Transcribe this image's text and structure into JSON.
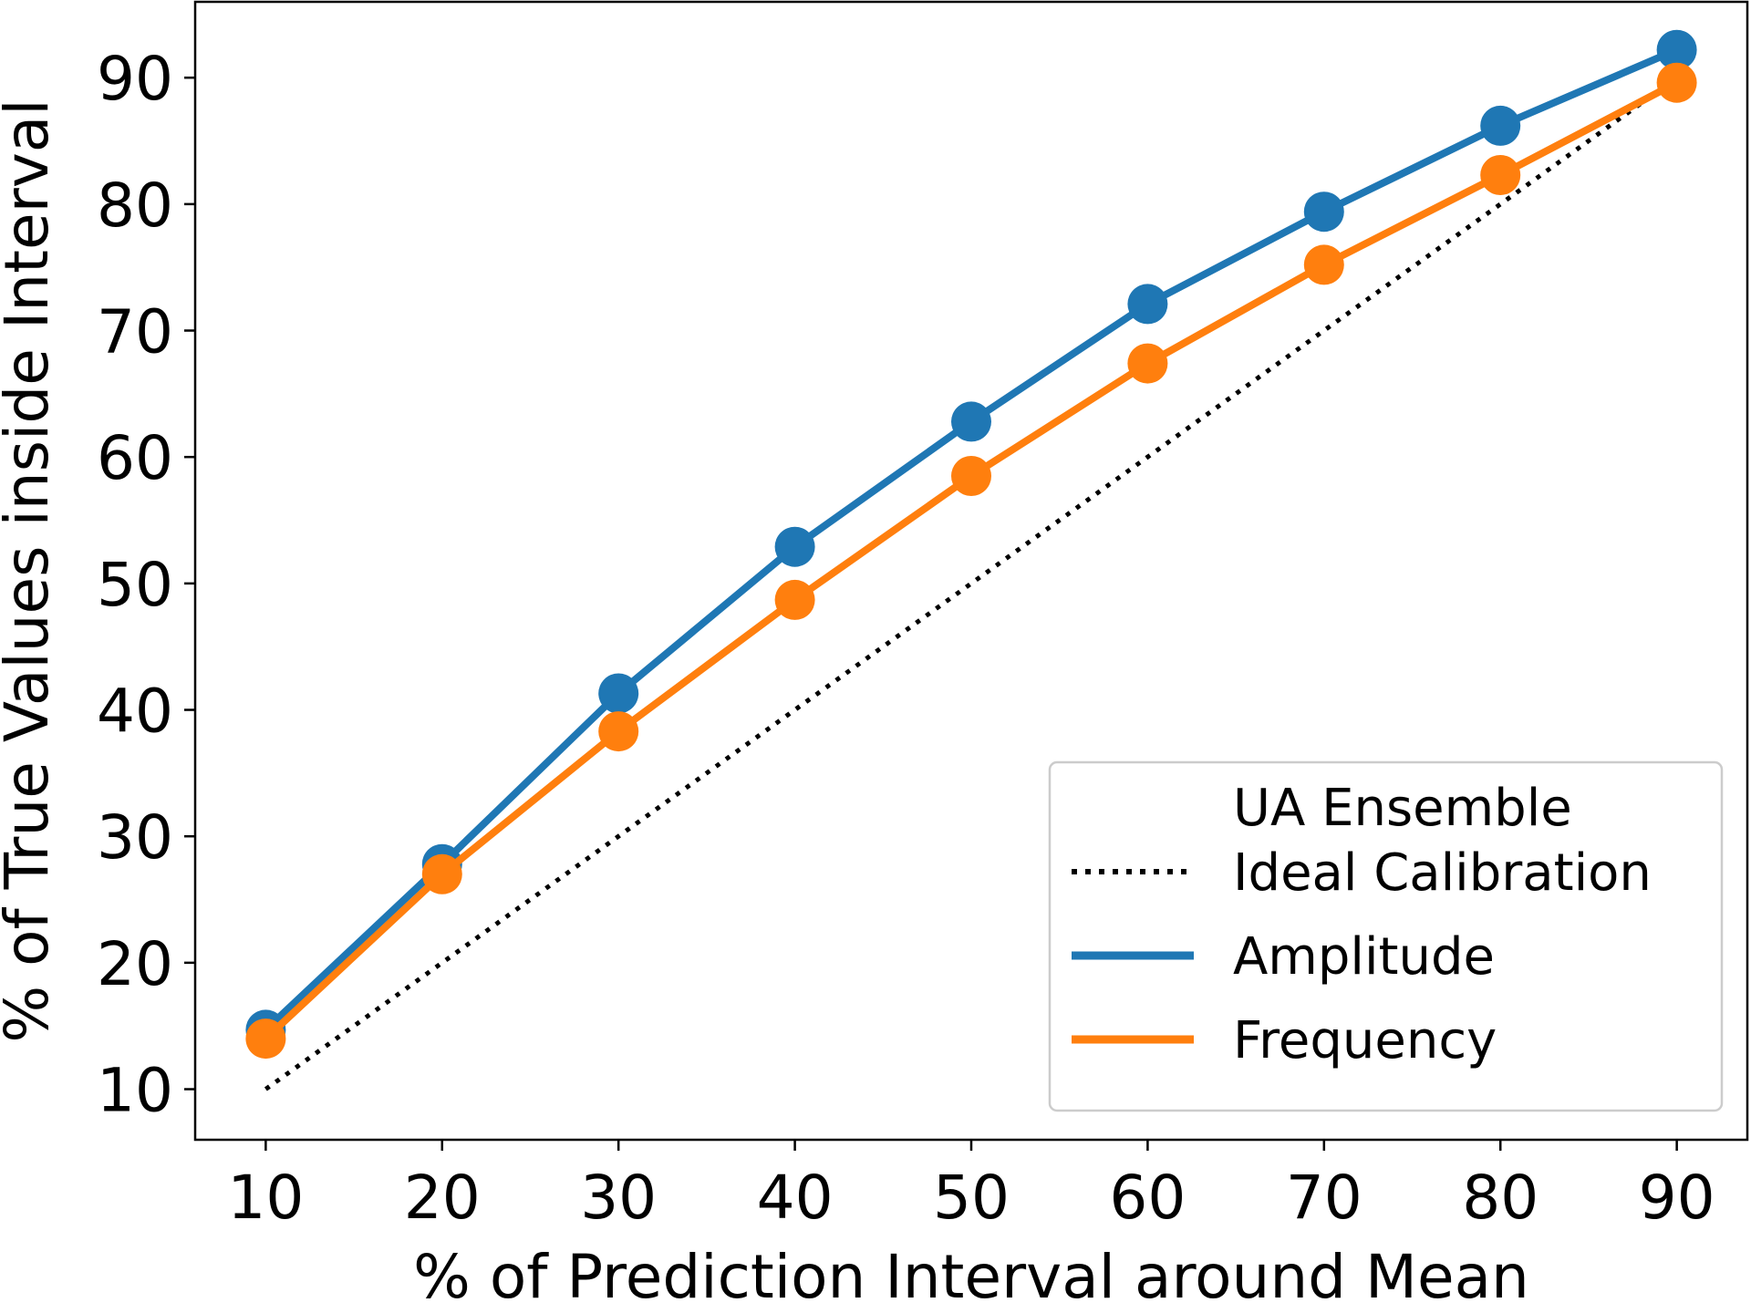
{
  "chart_data": {
    "type": "line",
    "title": "",
    "xlabel": "% of Prediction Interval around Mean",
    "ylabel": "% of True Values inside Interval",
    "x": [
      10,
      20,
      30,
      40,
      50,
      60,
      70,
      80,
      90
    ],
    "xlim": [
      6,
      94
    ],
    "ylim": [
      6,
      96
    ],
    "xticks": [
      10,
      20,
      30,
      40,
      50,
      60,
      70,
      80,
      90
    ],
    "yticks": [
      10,
      20,
      30,
      40,
      50,
      60,
      70,
      80,
      90
    ],
    "grid": false,
    "legend": {
      "location": "lower-right",
      "title": "UA Ensemble",
      "entries": [
        "Ideal Calibration",
        "Amplitude",
        "Frequency"
      ]
    },
    "series": [
      {
        "name": "Ideal Calibration",
        "style": "dotted",
        "color": "#000000",
        "values": [
          10,
          20,
          30,
          40,
          50,
          60,
          70,
          80,
          90
        ]
      },
      {
        "name": "Amplitude",
        "style": "solid",
        "color": "#1f77b4",
        "markers": true,
        "values": [
          14.7,
          27.8,
          41.3,
          52.9,
          62.8,
          72.1,
          79.4,
          86.2,
          92.2
        ]
      },
      {
        "name": "Frequency",
        "style": "solid",
        "color": "#ff7f0e",
        "markers": true,
        "values": [
          14.0,
          27.0,
          38.3,
          48.7,
          58.5,
          67.4,
          75.2,
          82.3,
          89.6
        ]
      }
    ]
  }
}
